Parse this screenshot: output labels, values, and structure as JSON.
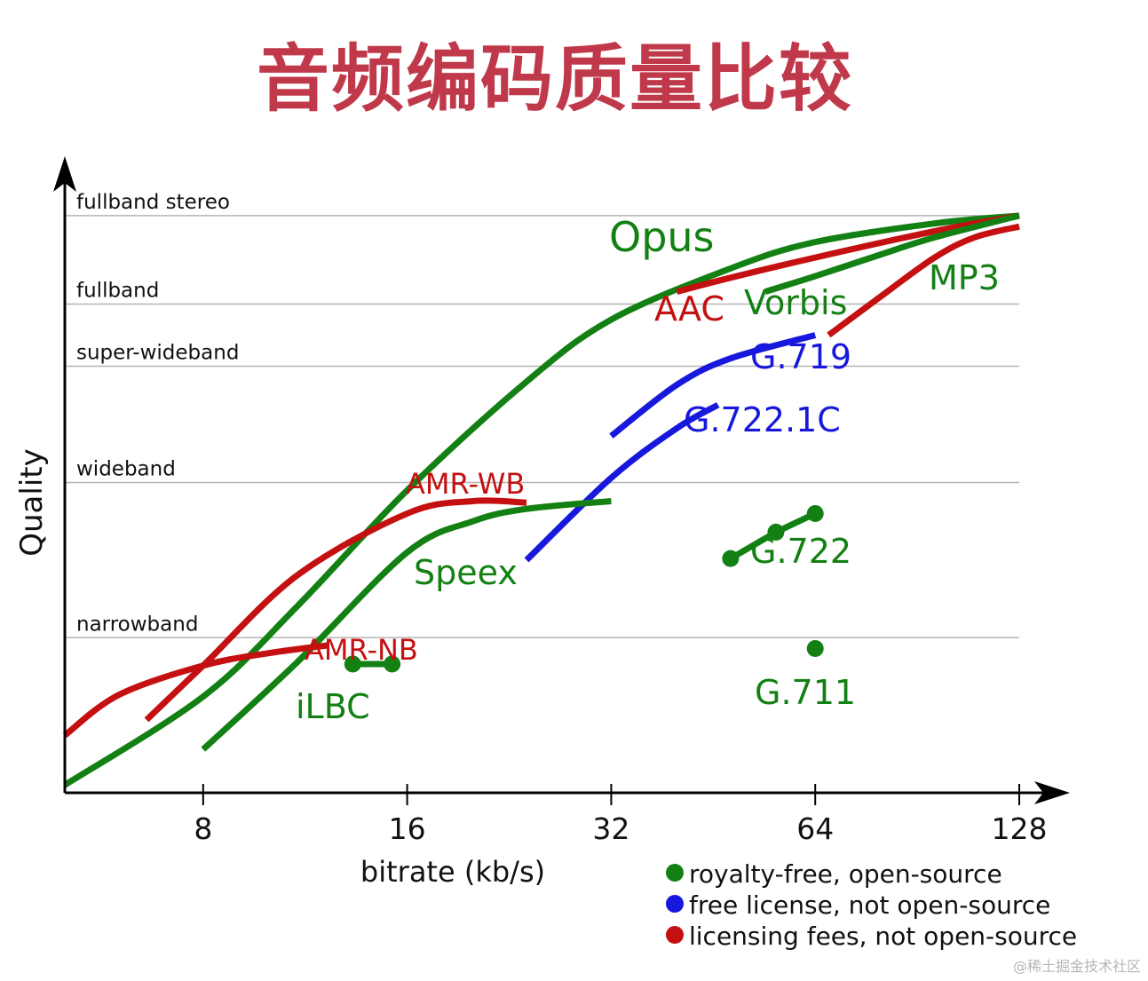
{
  "title": "音频编码质量比较",
  "watermark": "@稀土掘金技术社区",
  "colors": {
    "royalty_free": "#138013",
    "free_license": "#1818dd",
    "licensing_fees": "#c41010",
    "title": "#c0394a",
    "axis": "#000000",
    "grid": "#b5b5b5"
  },
  "chart_data": {
    "type": "line",
    "xlabel": "bitrate (kb/s)",
    "ylabel": "Quality",
    "x_scale": "log2",
    "x_ticks": [
      8,
      16,
      32,
      64,
      128
    ],
    "x_tick_labels": [
      "8",
      "16",
      "32",
      "64",
      "128"
    ],
    "xlim": [
      5,
      128
    ],
    "y_levels": [
      {
        "label": "narrowband",
        "value": 1
      },
      {
        "label": "wideband",
        "value": 2
      },
      {
        "label": "super-wideband",
        "value": 2.75
      },
      {
        "label": "fullband",
        "value": 3.15
      },
      {
        "label": "fullband stereo",
        "value": 3.72
      }
    ],
    "ylim": [
      0,
      4
    ],
    "series": [
      {
        "name": "Opus",
        "category": "royalty_free",
        "x": [
          5,
          8,
          11,
          16,
          24,
          32,
          48,
          64,
          96,
          128
        ],
        "y": [
          0.05,
          0.62,
          1.2,
          1.95,
          2.65,
          3.05,
          3.38,
          3.55,
          3.67,
          3.72
        ]
      },
      {
        "name": "AAC",
        "category": "licensing_fees",
        "x": [
          40,
          48,
          64,
          96,
          128
        ],
        "y": [
          3.23,
          3.32,
          3.45,
          3.62,
          3.72
        ]
      },
      {
        "name": "Vorbis",
        "category": "royalty_free",
        "x": [
          54,
          64,
          80,
          96,
          128
        ],
        "y": [
          3.23,
          3.33,
          3.47,
          3.58,
          3.72
        ]
      },
      {
        "name": "MP3",
        "category": "licensing_fees",
        "label_color": "royalty_free",
        "x": [
          67,
          80,
          96,
          110,
          128
        ],
        "y": [
          2.95,
          3.2,
          3.45,
          3.58,
          3.65
        ]
      },
      {
        "name": "G.719",
        "category": "free_license",
        "x": [
          32,
          40,
          48,
          64
        ],
        "y": [
          2.3,
          2.63,
          2.8,
          2.95
        ]
      },
      {
        "name": "G.722.1C",
        "category": "free_license",
        "x": [
          24,
          32,
          40,
          46
        ],
        "y": [
          1.5,
          2.03,
          2.35,
          2.5
        ]
      },
      {
        "name": "AMR-WB",
        "category": "licensing_fees",
        "x": [
          6.6,
          8,
          11,
          16,
          20,
          24
        ],
        "y": [
          0.47,
          0.82,
          1.4,
          1.8,
          1.88,
          1.87
        ]
      },
      {
        "name": "Speex",
        "category": "royalty_free",
        "x": [
          8,
          11,
          16,
          20,
          24,
          32
        ],
        "y": [
          0.28,
          0.84,
          1.55,
          1.75,
          1.83,
          1.88
        ]
      },
      {
        "name": "AMR-NB",
        "category": "licensing_fees",
        "x": [
          5,
          6,
          8,
          10,
          12.2
        ],
        "y": [
          0.37,
          0.63,
          0.82,
          0.9,
          0.95
        ]
      },
      {
        "name": "iLBC",
        "category": "royalty_free",
        "markers": true,
        "x": [
          13.3,
          15.2
        ],
        "y": [
          0.83,
          0.83
        ]
      },
      {
        "name": "G.722",
        "category": "royalty_free",
        "markers": true,
        "x": [
          48,
          56,
          64
        ],
        "y": [
          1.51,
          1.68,
          1.8
        ]
      },
      {
        "name": "G.711",
        "category": "royalty_free",
        "markers": true,
        "x": [
          64
        ],
        "y": [
          0.93
        ]
      }
    ],
    "legend": {
      "placement": "bottom-right",
      "entries": [
        {
          "label": "royalty-free, open-source",
          "category": "royalty_free"
        },
        {
          "label": "free license, not open-source",
          "category": "free_license"
        },
        {
          "label": "licensing fees, not open-source",
          "category": "licensing_fees"
        }
      ]
    }
  }
}
